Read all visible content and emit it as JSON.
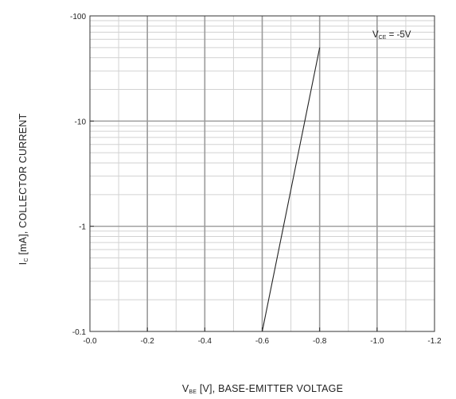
{
  "chart_data": {
    "type": "line",
    "x": [
      -0.6,
      -0.8
    ],
    "series": [
      {
        "values": [
          -0.1,
          -50
        ]
      }
    ],
    "xlim": [
      0.0,
      -1.2
    ],
    "ylim": [
      -0.1,
      -100
    ],
    "yscale": "log",
    "x_tick_labels": [
      "-0.0",
      "-0.2",
      "-0.4",
      "-0.6",
      "-0.8",
      "-1.0",
      "-1.2"
    ],
    "y_tick_labels": [
      "-0.1",
      "-1",
      "-10",
      "-100"
    ],
    "xlabel": {
      "main": "V",
      "sub": "BE",
      "rest": " [V], BASE-EMITTER VOLTAGE"
    },
    "ylabel": {
      "main": "I",
      "sub": "C",
      "rest": " [mA], COLLECTOR CURRENT"
    },
    "annotation": {
      "main": "V",
      "sub": "CE",
      "rest": " = -5V"
    },
    "grid": true,
    "colors": {
      "line": "#222222",
      "major_grid": "#9a9a9a",
      "minor_grid": "#d2d2d2",
      "frame": "#333333"
    }
  }
}
